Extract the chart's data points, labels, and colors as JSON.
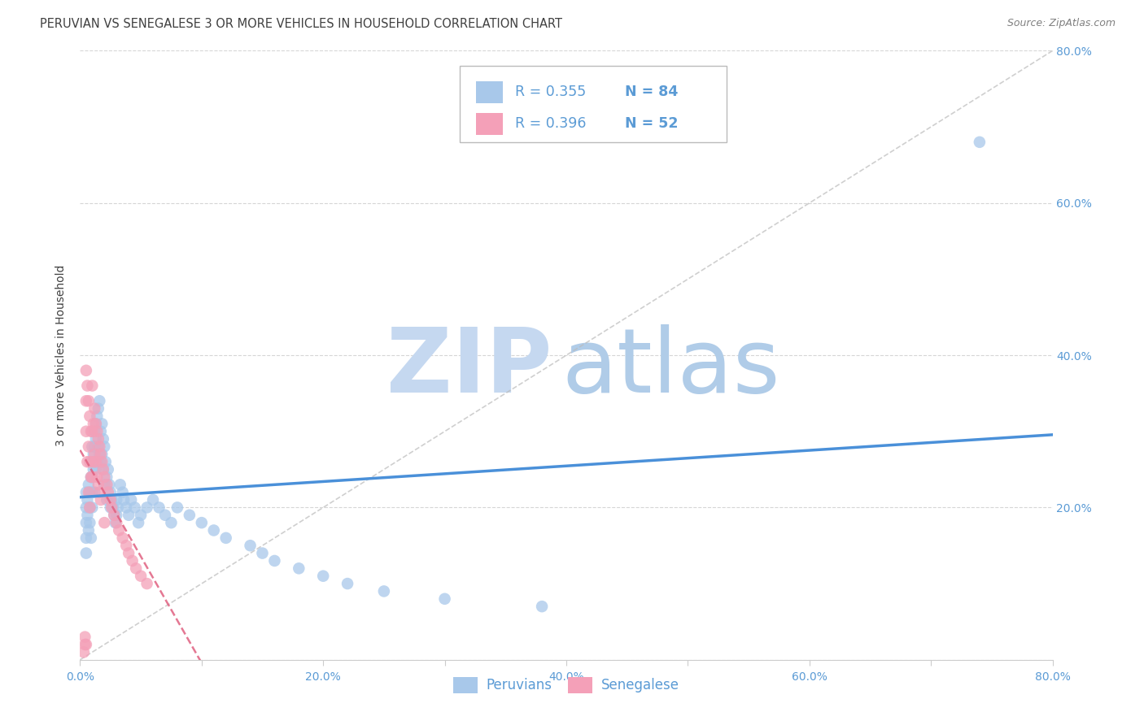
{
  "title": "PERUVIAN VS SENEGALESE 3 OR MORE VEHICLES IN HOUSEHOLD CORRELATION CHART",
  "source": "Source: ZipAtlas.com",
  "ylabel": "3 or more Vehicles in Household",
  "xlim": [
    0.0,
    0.8
  ],
  "ylim": [
    0.0,
    0.8
  ],
  "legend_peruvian_R": "R = 0.355",
  "legend_peruvian_N": "N = 84",
  "legend_senegalese_R": "R = 0.396",
  "legend_senegalese_N": "N = 52",
  "peruvian_color": "#a8c8ea",
  "senegalese_color": "#f4a0b8",
  "peruvian_line_color": "#4a90d9",
  "senegalese_line_color": "#e06080",
  "watermark_zip_color": "#c5d8f0",
  "watermark_atlas_color": "#b0cce8",
  "background_color": "#ffffff",
  "grid_color": "#cccccc",
  "tick_color": "#5b9bd5",
  "title_color": "#404040",
  "source_color": "#808080",
  "ylabel_color": "#404040",
  "peru_x": [
    0.005,
    0.005,
    0.005,
    0.005,
    0.005,
    0.006,
    0.006,
    0.007,
    0.007,
    0.008,
    0.008,
    0.008,
    0.009,
    0.009,
    0.01,
    0.01,
    0.01,
    0.01,
    0.01,
    0.011,
    0.011,
    0.012,
    0.012,
    0.012,
    0.013,
    0.013,
    0.013,
    0.014,
    0.014,
    0.015,
    0.015,
    0.016,
    0.016,
    0.017,
    0.017,
    0.018,
    0.018,
    0.019,
    0.019,
    0.02,
    0.02,
    0.021,
    0.022,
    0.022,
    0.023,
    0.024,
    0.025,
    0.025,
    0.026,
    0.027,
    0.028,
    0.029,
    0.03,
    0.03,
    0.031,
    0.033,
    0.035,
    0.036,
    0.038,
    0.04,
    0.042,
    0.045,
    0.048,
    0.05,
    0.055,
    0.06,
    0.065,
    0.07,
    0.075,
    0.08,
    0.09,
    0.1,
    0.11,
    0.12,
    0.14,
    0.15,
    0.16,
    0.18,
    0.2,
    0.22,
    0.25,
    0.3,
    0.38,
    0.74
  ],
  "peru_y": [
    0.22,
    0.2,
    0.18,
    0.16,
    0.14,
    0.21,
    0.19,
    0.23,
    0.17,
    0.22,
    0.2,
    0.18,
    0.24,
    0.16,
    0.28,
    0.26,
    0.24,
    0.22,
    0.2,
    0.27,
    0.25,
    0.3,
    0.28,
    0.22,
    0.31,
    0.29,
    0.25,
    0.32,
    0.26,
    0.33,
    0.28,
    0.34,
    0.27,
    0.3,
    0.26,
    0.31,
    0.27,
    0.29,
    0.25,
    0.28,
    0.23,
    0.26,
    0.24,
    0.21,
    0.25,
    0.23,
    0.22,
    0.2,
    0.21,
    0.2,
    0.19,
    0.18,
    0.21,
    0.19,
    0.2,
    0.23,
    0.22,
    0.21,
    0.2,
    0.19,
    0.21,
    0.2,
    0.18,
    0.19,
    0.2,
    0.21,
    0.2,
    0.19,
    0.18,
    0.2,
    0.19,
    0.18,
    0.17,
    0.16,
    0.15,
    0.14,
    0.13,
    0.12,
    0.11,
    0.1,
    0.09,
    0.08,
    0.07,
    0.68
  ],
  "sene_x": [
    0.003,
    0.004,
    0.004,
    0.005,
    0.005,
    0.005,
    0.005,
    0.006,
    0.006,
    0.007,
    0.007,
    0.007,
    0.008,
    0.008,
    0.008,
    0.009,
    0.009,
    0.01,
    0.01,
    0.01,
    0.011,
    0.011,
    0.012,
    0.012,
    0.013,
    0.013,
    0.014,
    0.014,
    0.015,
    0.015,
    0.016,
    0.016,
    0.017,
    0.017,
    0.018,
    0.019,
    0.02,
    0.02,
    0.022,
    0.023,
    0.025,
    0.026,
    0.028,
    0.03,
    0.032,
    0.035,
    0.038,
    0.04,
    0.043,
    0.046,
    0.05,
    0.055
  ],
  "sene_y": [
    0.01,
    0.02,
    0.03,
    0.38,
    0.34,
    0.3,
    0.02,
    0.36,
    0.26,
    0.34,
    0.28,
    0.22,
    0.32,
    0.26,
    0.2,
    0.3,
    0.24,
    0.36,
    0.3,
    0.24,
    0.31,
    0.26,
    0.33,
    0.27,
    0.31,
    0.26,
    0.3,
    0.24,
    0.29,
    0.23,
    0.28,
    0.22,
    0.27,
    0.21,
    0.26,
    0.25,
    0.24,
    0.18,
    0.23,
    0.22,
    0.21,
    0.2,
    0.19,
    0.18,
    0.17,
    0.16,
    0.15,
    0.14,
    0.13,
    0.12,
    0.11,
    0.1
  ]
}
